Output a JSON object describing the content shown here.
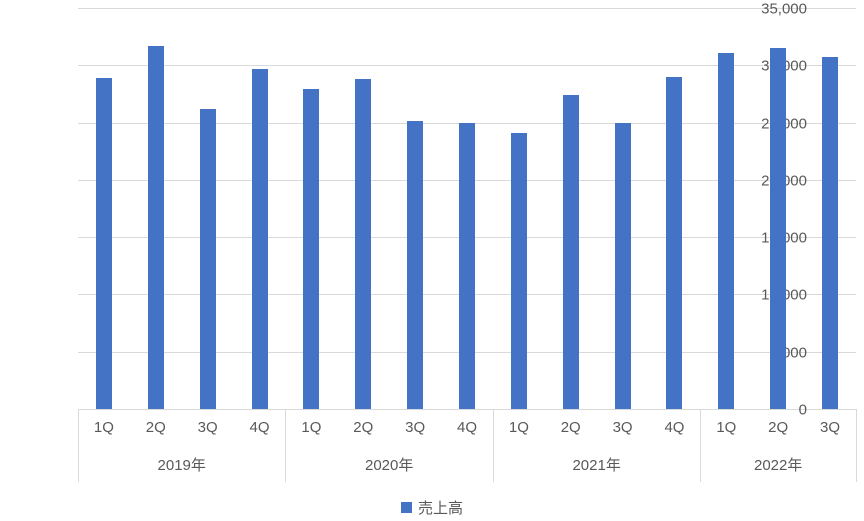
{
  "chart_data": {
    "type": "bar",
    "title": "",
    "series_name": "売上高",
    "groups": [
      {
        "year": "2019年",
        "quarters": [
          "1Q",
          "2Q",
          "3Q",
          "4Q"
        ],
        "values": [
          28900,
          31700,
          26200,
          29700
        ]
      },
      {
        "year": "2020年",
        "quarters": [
          "1Q",
          "2Q",
          "3Q",
          "4Q"
        ],
        "values": [
          27900,
          28800,
          25100,
          25000
        ]
      },
      {
        "year": "2021年",
        "quarters": [
          "1Q",
          "2Q",
          "3Q",
          "4Q"
        ],
        "values": [
          24100,
          27400,
          25000,
          29000
        ]
      },
      {
        "year": "2022年",
        "quarters": [
          "1Q",
          "2Q",
          "3Q"
        ],
        "values": [
          31100,
          31500,
          30700
        ]
      }
    ],
    "xlabel": "",
    "ylabel": "",
    "ylim": [
      0,
      35000
    ],
    "ytick_step": 5000,
    "ytick_labels": [
      "0",
      "5,000",
      "10,000",
      "15,000",
      "20,000",
      "25,000",
      "30,000",
      "35,000"
    ],
    "grid": true,
    "legend": {
      "label": "売上高",
      "position": "bottom"
    },
    "colors": {
      "bar": "#4472C4",
      "gridline": "#D9D9D9",
      "separator": "#D9D9D9",
      "axis_text": "#595959",
      "background": "#FFFFFF"
    }
  }
}
